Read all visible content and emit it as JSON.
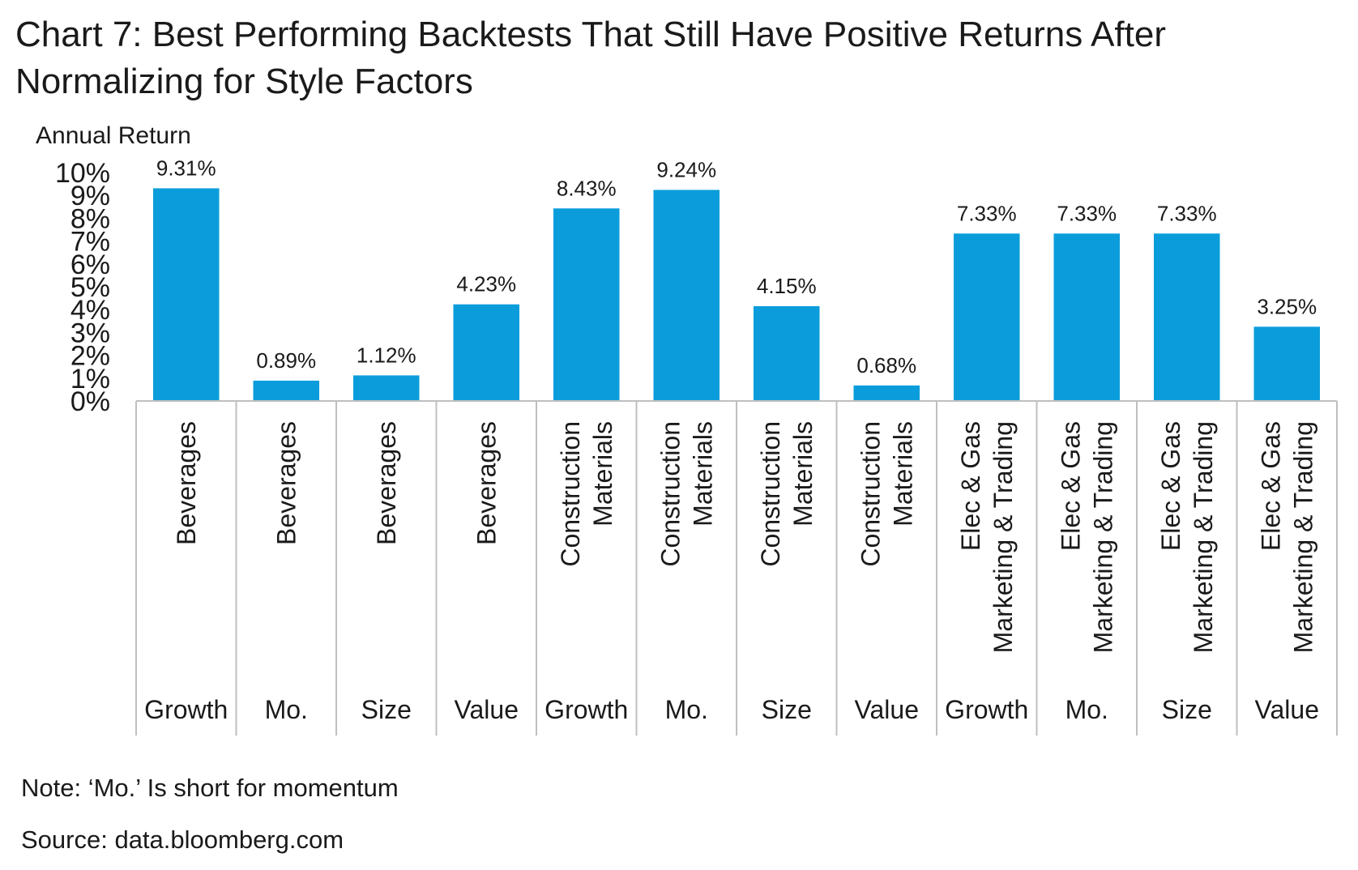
{
  "title": "Chart 7: Best Performing Backtests That Still Have Positive Returns After Normalizing for Style Factors",
  "note": "Note: ‘Mo.’ Is short for momentum",
  "source": "Source: data.bloomberg.com",
  "colors": {
    "bar": "#0b9ddb",
    "axis": "#bfbfbf",
    "text": "#1a1a1a"
  },
  "chart_data": {
    "type": "bar",
    "ylabel": "Annual Return",
    "ylim": [
      0,
      10
    ],
    "y_ticks": [
      "0%",
      "1%",
      "2%",
      "3%",
      "4%",
      "5%",
      "6%",
      "7%",
      "8%",
      "9%",
      "10%"
    ],
    "grid": false,
    "categories": [
      {
        "industry": [
          "Beverages"
        ],
        "factor": "Growth"
      },
      {
        "industry": [
          "Beverages"
        ],
        "factor": "Mo."
      },
      {
        "industry": [
          "Beverages"
        ],
        "factor": "Size"
      },
      {
        "industry": [
          "Beverages"
        ],
        "factor": "Value"
      },
      {
        "industry": [
          "Construction",
          "Materials"
        ],
        "factor": "Growth"
      },
      {
        "industry": [
          "Construction",
          "Materials"
        ],
        "factor": "Mo."
      },
      {
        "industry": [
          "Construction",
          "Materials"
        ],
        "factor": "Size"
      },
      {
        "industry": [
          "Construction",
          "Materials"
        ],
        "factor": "Value"
      },
      {
        "industry": [
          "Elec & Gas",
          "Marketing & Trading"
        ],
        "factor": "Growth"
      },
      {
        "industry": [
          "Elec & Gas",
          "Marketing & Trading"
        ],
        "factor": "Mo."
      },
      {
        "industry": [
          "Elec & Gas",
          "Marketing & Trading"
        ],
        "factor": "Size"
      },
      {
        "industry": [
          "Elec & Gas",
          "Marketing & Trading"
        ],
        "factor": "Value"
      }
    ],
    "values": [
      9.31,
      0.89,
      1.12,
      4.23,
      8.43,
      9.24,
      4.15,
      0.68,
      7.33,
      7.33,
      7.33,
      3.25
    ],
    "data_labels": [
      "9.31%",
      "0.89%",
      "1.12%",
      "4.23%",
      "8.43%",
      "9.24%",
      "4.15%",
      "0.68%",
      "7.33%",
      "7.33%",
      "7.33%",
      "3.25%"
    ]
  }
}
